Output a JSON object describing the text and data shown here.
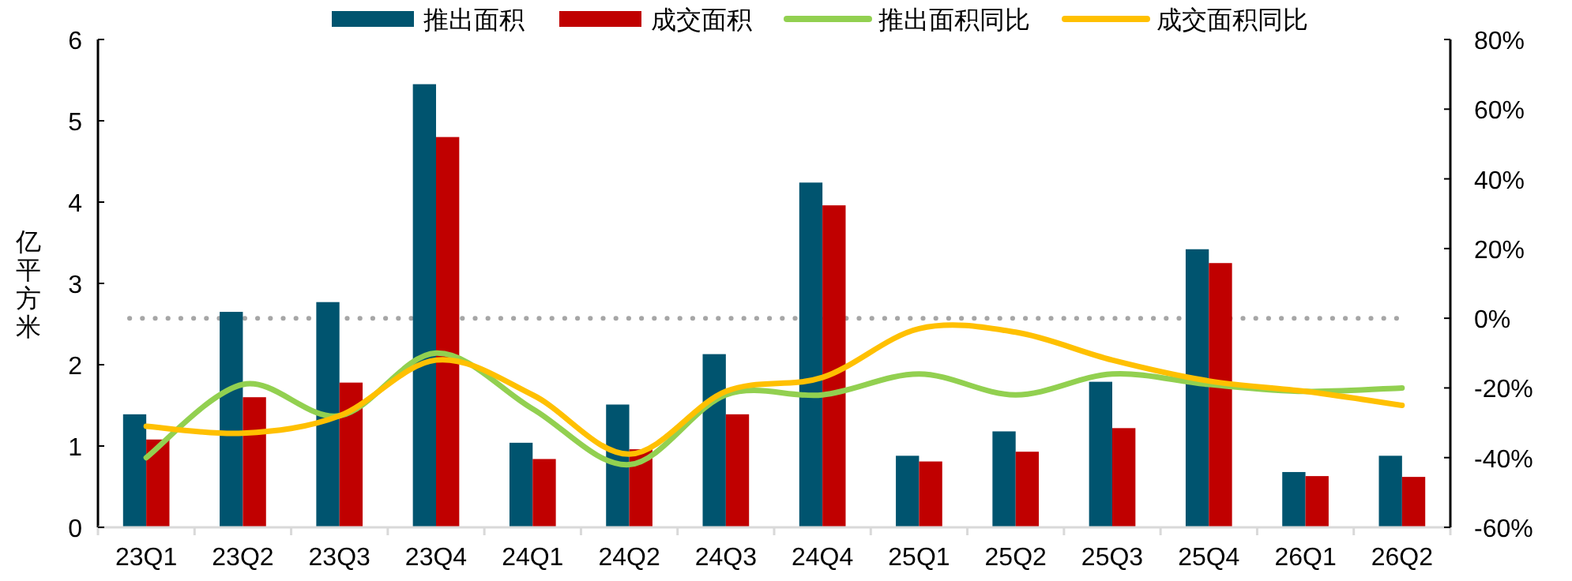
{
  "chart_data": {
    "type": "bar",
    "ylabel": "亿平方米",
    "categories": [
      "23Q1",
      "23Q2",
      "23Q3",
      "23Q4",
      "24Q1",
      "24Q2",
      "24Q3",
      "24Q4",
      "25Q1",
      "25Q2",
      "25Q3",
      "25Q4",
      "26Q1",
      "26Q2"
    ],
    "series": [
      {
        "name": "推出面积",
        "color": "#00546f",
        "values": [
          1.39,
          2.65,
          2.77,
          5.45,
          1.04,
          1.51,
          2.13,
          4.24,
          0.88,
          1.18,
          1.79,
          3.42,
          0.68,
          0.88
        ]
      },
      {
        "name": "成交面积",
        "color": "#c00000",
        "values": [
          1.08,
          1.6,
          1.78,
          4.8,
          0.84,
          0.96,
          1.39,
          3.96,
          0.81,
          0.93,
          1.22,
          3.25,
          0.63,
          0.62
        ]
      },
      {
        "name": "推出面积同比",
        "type": "line",
        "axis": "y2",
        "color": "#92d050",
        "values": [
          -40,
          -19,
          -28,
          -10,
          -26,
          -42,
          -22,
          -22,
          -16,
          -22,
          -16,
          -19,
          -21,
          -20
        ]
      },
      {
        "name": "成交面积同比",
        "type": "line",
        "axis": "y2",
        "color": "#ffc000",
        "values": [
          -31,
          -33,
          -28,
          -12,
          -22,
          -39,
          -21,
          -17,
          -3,
          -4,
          -12,
          -18,
          -21,
          -25
        ]
      }
    ],
    "ylim": [
      0,
      6
    ],
    "yticks": [
      0,
      1,
      2,
      3,
      4,
      5,
      6
    ],
    "y2lim": [
      -60,
      80
    ],
    "y2ticks": [
      {
        "value": -60,
        "label": "-60%"
      },
      {
        "value": -40,
        "label": "-40%"
      },
      {
        "value": -20,
        "label": "-20%"
      },
      {
        "value": 0,
        "label": "0%"
      },
      {
        "value": 20,
        "label": "20%"
      },
      {
        "value": 40,
        "label": "40%"
      },
      {
        "value": 60,
        "label": "60%"
      },
      {
        "value": 80,
        "label": "80%"
      }
    ],
    "ref_lines": [
      {
        "axis": "y2",
        "value": 0,
        "color": "#a6a6a6",
        "line_style": "dotted"
      }
    ],
    "legend": "top",
    "grid": false,
    "line_style": "solid",
    "marker": "none"
  }
}
